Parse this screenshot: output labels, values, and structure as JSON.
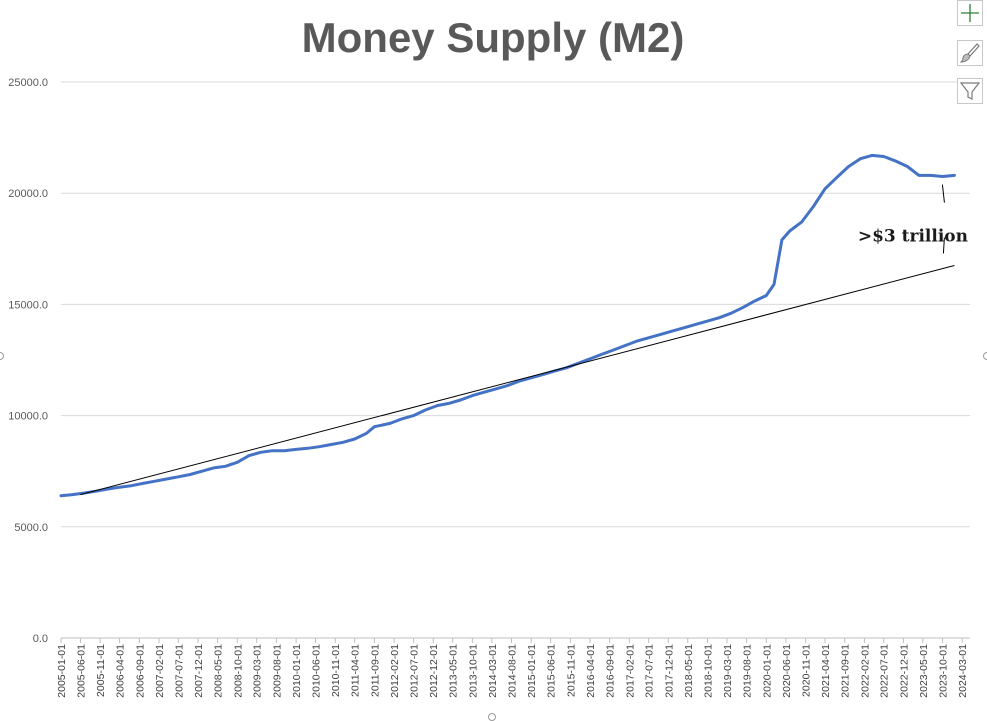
{
  "side_buttons": [
    {
      "name": "chart-elements-button",
      "icon": "plus-icon",
      "color": "#2e7d32"
    },
    {
      "name": "chart-styles-button",
      "icon": "brush-icon",
      "color": "#7a7a7a"
    },
    {
      "name": "chart-filters-button",
      "icon": "funnel-icon",
      "color": "#7a7a7a"
    }
  ],
  "chart_data": {
    "type": "line",
    "title": "Money Supply (M2)",
    "xlabel": "",
    "ylabel": "",
    "ylim": [
      0,
      25000
    ],
    "yticks": [
      "0.0",
      "5000.0",
      "10000.0",
      "15000.0",
      "20000.0",
      "25000.0"
    ],
    "x_tick_labels": [
      "2005-01-01",
      "2005-06-01",
      "2005-11-01",
      "2006-04-01",
      "2006-09-01",
      "2007-02-01",
      "2007-07-01",
      "2007-12-01",
      "2008-05-01",
      "2008-10-01",
      "2009-03-01",
      "2009-08-01",
      "2010-01-01",
      "2010-06-01",
      "2010-11-01",
      "2011-04-01",
      "2011-09-01",
      "2012-02-01",
      "2012-07-01",
      "2012-12-01",
      "2013-05-01",
      "2013-10-01",
      "2014-03-01",
      "2014-08-01",
      "2015-01-01",
      "2015-06-01",
      "2015-11-01",
      "2016-04-01",
      "2016-09-01",
      "2017-02-01",
      "2017-07-01",
      "2017-12-01",
      "2018-05-01",
      "2018-10-01",
      "2019-03-01",
      "2019-08-01",
      "2020-01-01",
      "2020-06-01",
      "2020-11-01",
      "2021-04-01",
      "2021-09-01",
      "2022-02-01",
      "2022-07-01",
      "2022-12-01",
      "2023-05-01",
      "2023-10-01",
      "2024-03-01"
    ],
    "xlim": [
      "2005-01-01",
      "2024-05-01"
    ],
    "grid": {
      "horizontal": true,
      "vertical": false
    },
    "legend": "none",
    "colors": {
      "m2_line": "#4472c4",
      "trend_line": "#000000",
      "gridline": "#d9d9d9",
      "axis": "#bfbfbf"
    },
    "series": [
      {
        "type": "line",
        "points": [
          [
            "2005-01-01",
            6400
          ],
          [
            "2005-04-01",
            6450
          ],
          [
            "2005-07-01",
            6520
          ],
          [
            "2005-10-01",
            6600
          ],
          [
            "2006-01-01",
            6700
          ],
          [
            "2006-04-01",
            6780
          ],
          [
            "2006-07-01",
            6850
          ],
          [
            "2006-10-01",
            6950
          ],
          [
            "2007-01-01",
            7050
          ],
          [
            "2007-04-01",
            7150
          ],
          [
            "2007-07-01",
            7250
          ],
          [
            "2007-10-01",
            7350
          ],
          [
            "2008-01-01",
            7500
          ],
          [
            "2008-04-01",
            7650
          ],
          [
            "2008-07-01",
            7720
          ],
          [
            "2008-10-01",
            7900
          ],
          [
            "2009-01-01",
            8200
          ],
          [
            "2009-04-01",
            8350
          ],
          [
            "2009-07-01",
            8420
          ],
          [
            "2009-10-01",
            8420
          ],
          [
            "2010-01-01",
            8480
          ],
          [
            "2010-04-01",
            8530
          ],
          [
            "2010-07-01",
            8600
          ],
          [
            "2010-10-01",
            8700
          ],
          [
            "2011-01-01",
            8800
          ],
          [
            "2011-04-01",
            8950
          ],
          [
            "2011-07-01",
            9200
          ],
          [
            "2011-09-01",
            9500
          ],
          [
            "2012-01-01",
            9650
          ],
          [
            "2012-04-01",
            9850
          ],
          [
            "2012-07-01",
            10000
          ],
          [
            "2012-10-01",
            10250
          ],
          [
            "2013-01-01",
            10450
          ],
          [
            "2013-04-01",
            10550
          ],
          [
            "2013-07-01",
            10700
          ],
          [
            "2013-10-01",
            10900
          ],
          [
            "2014-01-01",
            11050
          ],
          [
            "2014-04-01",
            11200
          ],
          [
            "2014-07-01",
            11350
          ],
          [
            "2014-10-01",
            11550
          ],
          [
            "2015-01-01",
            11700
          ],
          [
            "2015-04-01",
            11850
          ],
          [
            "2015-07-01",
            12000
          ],
          [
            "2015-10-01",
            12150
          ],
          [
            "2016-01-01",
            12350
          ],
          [
            "2016-04-01",
            12550
          ],
          [
            "2016-07-01",
            12750
          ],
          [
            "2016-10-01",
            12950
          ],
          [
            "2017-01-01",
            13150
          ],
          [
            "2017-04-01",
            13350
          ],
          [
            "2017-07-01",
            13500
          ],
          [
            "2017-10-01",
            13650
          ],
          [
            "2018-01-01",
            13800
          ],
          [
            "2018-04-01",
            13950
          ],
          [
            "2018-07-01",
            14100
          ],
          [
            "2018-10-01",
            14250
          ],
          [
            "2019-01-01",
            14400
          ],
          [
            "2019-04-01",
            14600
          ],
          [
            "2019-07-01",
            14850
          ],
          [
            "2019-10-01",
            15150
          ],
          [
            "2020-01-01",
            15400
          ],
          [
            "2020-03-01",
            15900
          ],
          [
            "2020-05-01",
            17900
          ],
          [
            "2020-07-01",
            18300
          ],
          [
            "2020-10-01",
            18700
          ],
          [
            "2021-01-01",
            19400
          ],
          [
            "2021-04-01",
            20200
          ],
          [
            "2021-07-01",
            20700
          ],
          [
            "2021-10-01",
            21200
          ],
          [
            "2022-01-01",
            21550
          ],
          [
            "2022-04-01",
            21700
          ],
          [
            "2022-07-01",
            21650
          ],
          [
            "2022-10-01",
            21450
          ],
          [
            "2023-01-01",
            21200
          ],
          [
            "2023-04-01",
            20800
          ],
          [
            "2023-07-01",
            20800
          ],
          [
            "2023-10-01",
            20750
          ],
          [
            "2024-01-01",
            20800
          ]
        ]
      },
      {
        "type": "trendline",
        "points": [
          [
            "2005-06-01",
            6450
          ],
          [
            "2024-01-01",
            16750
          ]
        ]
      }
    ],
    "annotations": [
      {
        "text": ">$3 trillion",
        "x": "2024-01-01",
        "y": 18100,
        "bracket": [
          20750,
          16750
        ]
      }
    ]
  }
}
